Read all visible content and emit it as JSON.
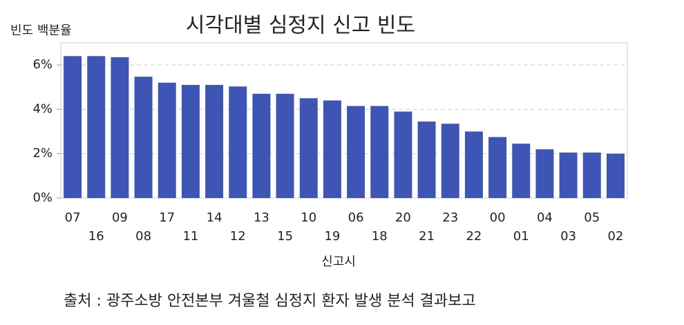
{
  "chart_data": {
    "type": "bar",
    "title": "시각대별 심정지 신고 빈도",
    "y_label": "빈도 백분율",
    "x_label": "신고시",
    "source": "출처 : 광주소방 안전본부 겨울철 심정지 환자 발생 분석 결과보고",
    "categories": [
      "07",
      "16",
      "09",
      "08",
      "17",
      "11",
      "14",
      "12",
      "13",
      "15",
      "10",
      "19",
      "06",
      "18",
      "20",
      "21",
      "23",
      "22",
      "00",
      "01",
      "04",
      "03",
      "05",
      "02"
    ],
    "values": [
      6.4,
      6.4,
      6.35,
      5.47,
      5.2,
      5.1,
      5.1,
      5.03,
      4.7,
      4.7,
      4.5,
      4.4,
      4.15,
      4.15,
      3.9,
      3.45,
      3.35,
      3.0,
      2.75,
      2.45,
      2.2,
      2.05,
      2.05,
      2.0
    ],
    "color": "#3f55b5",
    "ylim": [
      0,
      7
    ],
    "yticks": [
      {
        "value": 0,
        "label": "0%"
      },
      {
        "value": 2,
        "label": "2%"
      },
      {
        "value": 4,
        "label": "4%"
      },
      {
        "value": 6,
        "label": "6%"
      }
    ],
    "grid": true
  }
}
